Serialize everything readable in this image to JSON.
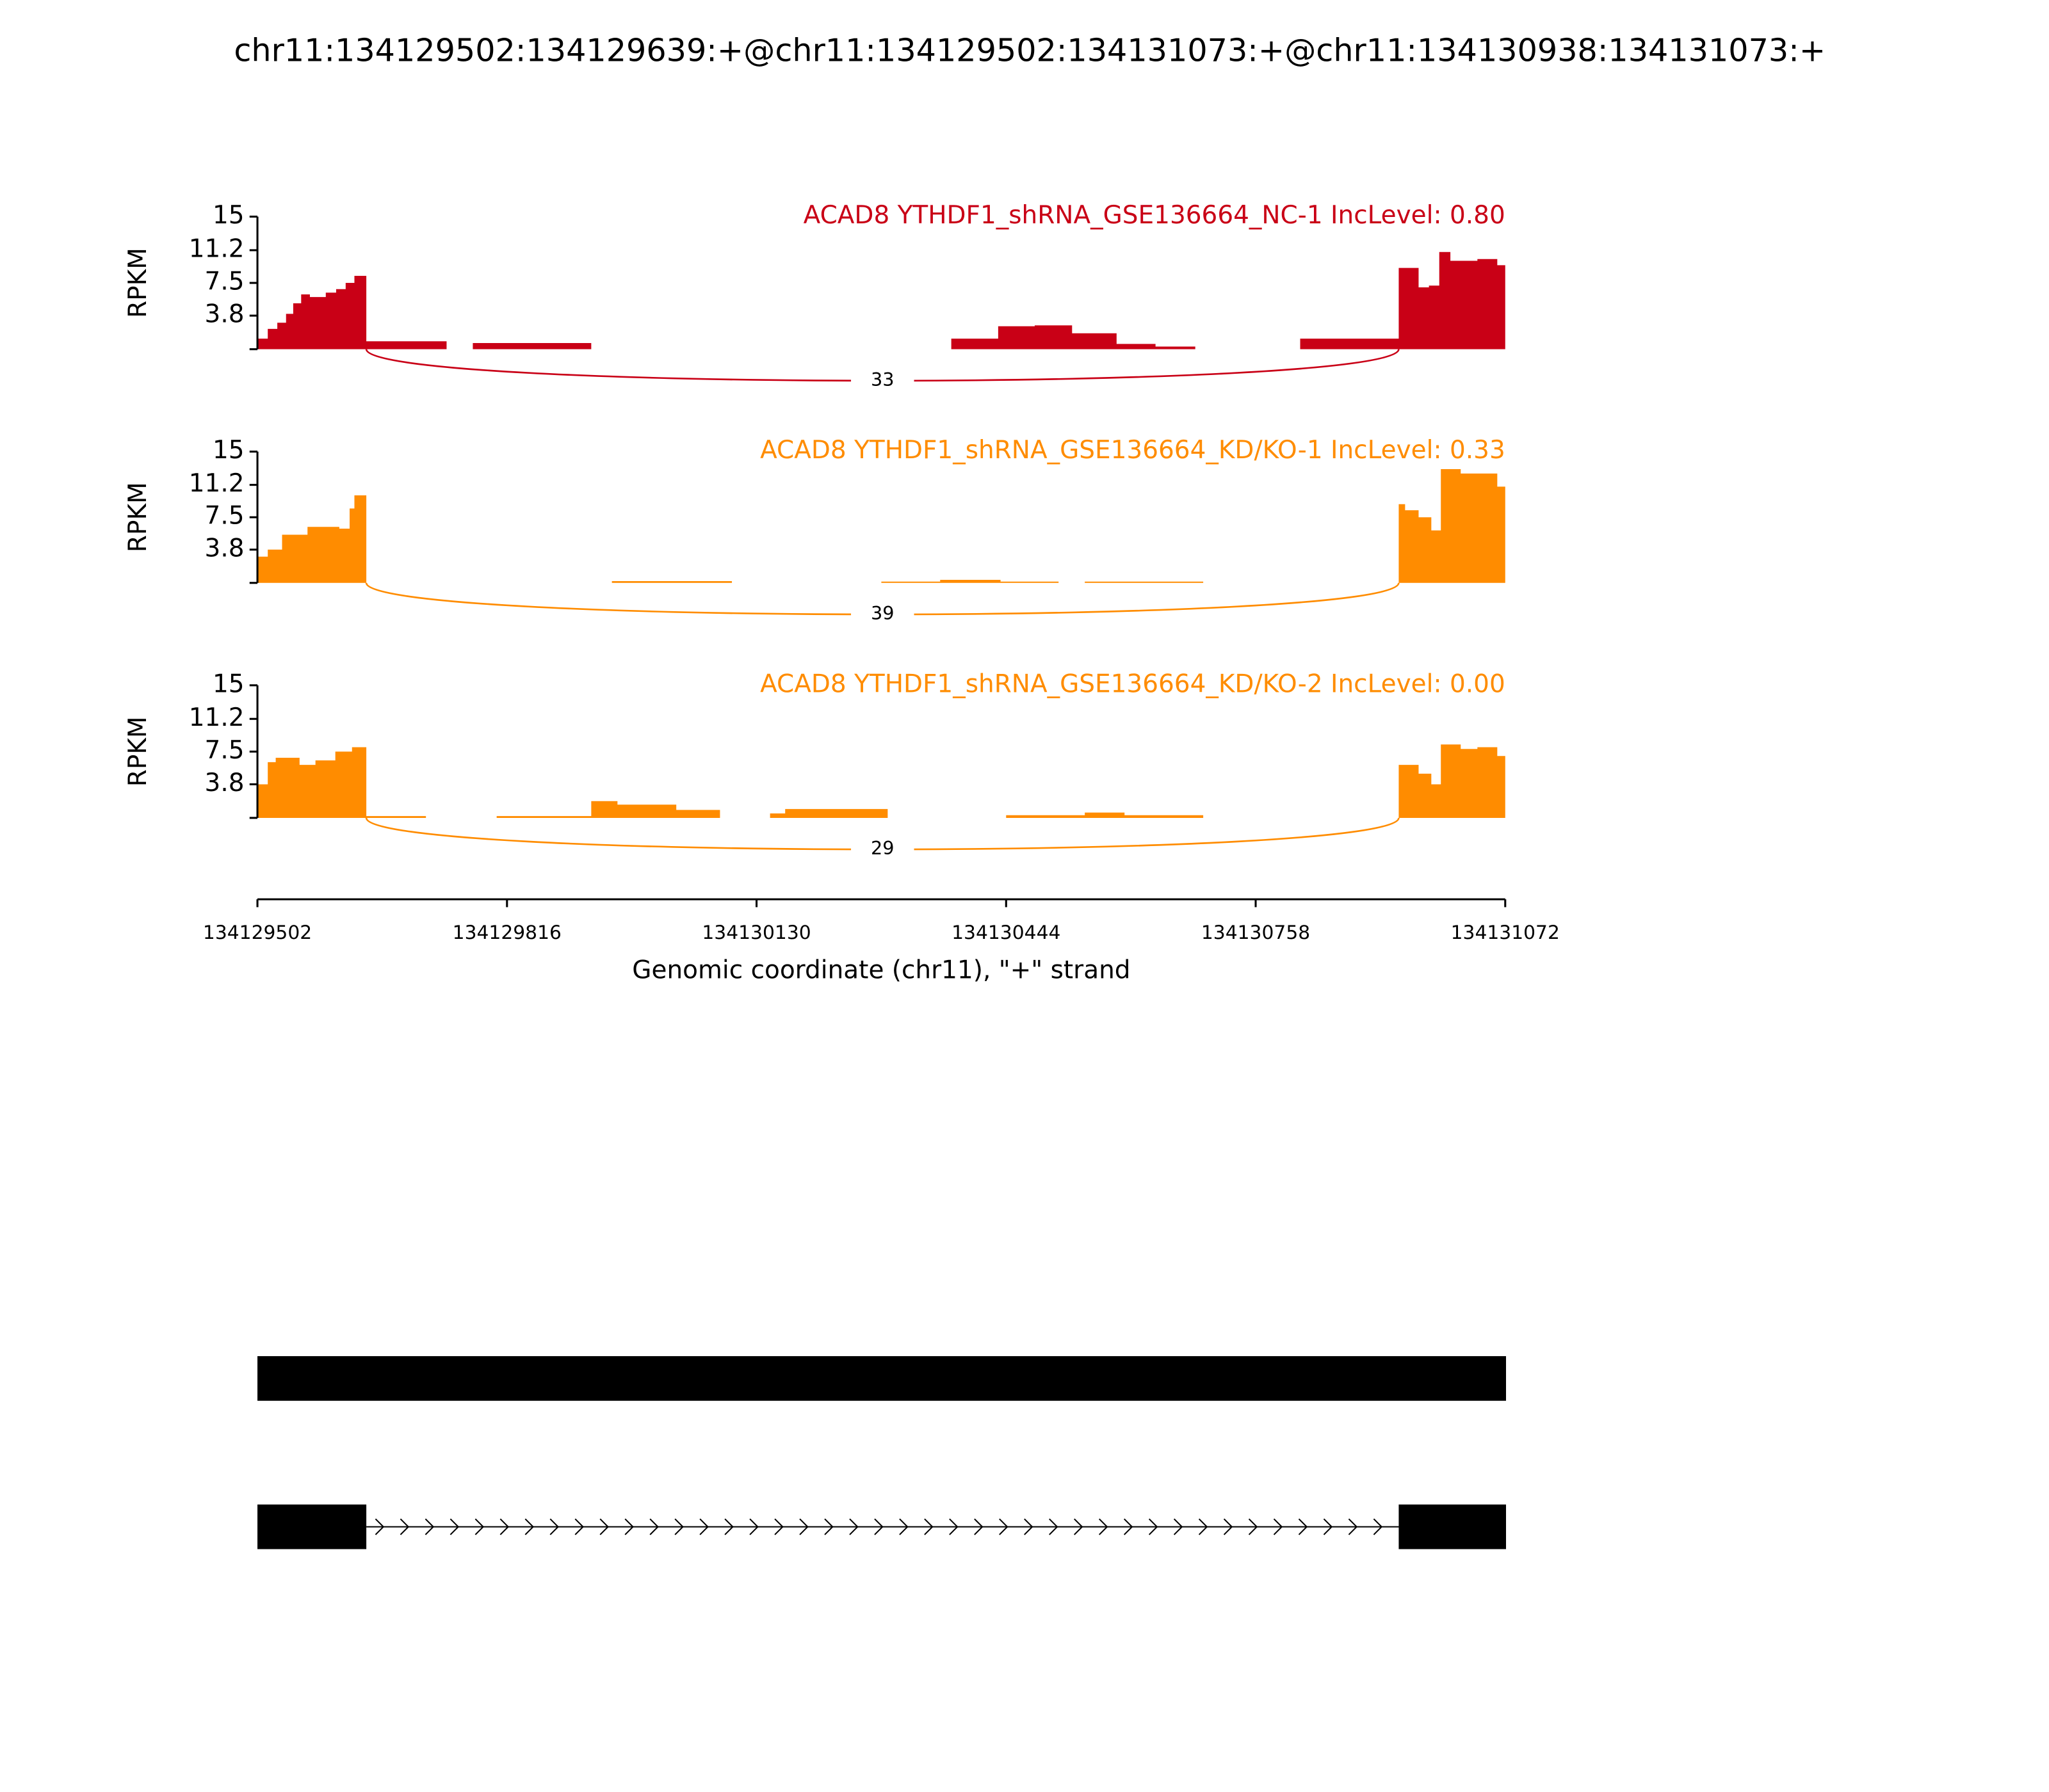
{
  "title": "chr11:134129502:134129639:+@chr11:134129502:134131073:+@chr11:134130938:134131073:+",
  "x_axis": {
    "label": "Genomic coordinate (chr11), \"+\" strand",
    "xlim": [
      134129502,
      134131072
    ],
    "xticks": [
      134129502,
      134129816,
      134130130,
      134130444,
      134130758,
      134131072
    ]
  },
  "chart_data": [
    {
      "type": "area",
      "title": "ACAD8 YTHDF1_shRNA_GSE136664_NC-1 IncLevel: 0.80",
      "ylabel": "RPKM",
      "color": "#c90016",
      "ylim": [
        0,
        15
      ],
      "yticks": [
        3.8,
        7.5,
        11.2,
        15
      ],
      "x": [
        134129502,
        134129515,
        134129527,
        134129538,
        134129547,
        134129557,
        134129568,
        134129588,
        134129601,
        134129613,
        134129624,
        134129639,
        134129740,
        134129773,
        134129922,
        134130375,
        134130434,
        134130480,
        134130527,
        134130583,
        134130632,
        134130682,
        134130814,
        134130938,
        134130963,
        134130976,
        134130989,
        134131003,
        134131037,
        134131062,
        134131072
      ],
      "values": [
        1.2,
        2.3,
        3.0,
        4.0,
        5.2,
        6.2,
        5.9,
        6.4,
        6.8,
        7.5,
        8.3,
        0.9,
        0,
        0.7,
        0,
        1.2,
        2.6,
        2.7,
        1.8,
        0.6,
        0.3,
        0,
        1.2,
        9.2,
        7.0,
        7.2,
        11.0,
        10.0,
        10.2,
        9.5,
        9.5
      ],
      "junction": {
        "start": 134129639,
        "end": 134130938,
        "count": 33
      }
    },
    {
      "type": "area",
      "title": "ACAD8 YTHDF1_shRNA_GSE136664_KD/KO-1 IncLevel: 0.33",
      "ylabel": "RPKM",
      "color": "#ff8c00",
      "ylim": [
        0,
        15
      ],
      "yticks": [
        3.8,
        7.5,
        11.2,
        15
      ],
      "x": [
        134129502,
        134129515,
        134129533,
        134129565,
        134129605,
        134129618,
        134129624,
        134129639,
        134129948,
        134130099,
        134130287,
        134130361,
        134130437,
        134130510,
        134130543,
        134130692,
        134130938,
        134130946,
        134130963,
        134130979,
        134130991,
        134131016,
        134131062,
        134131072
      ],
      "values": [
        3.0,
        3.8,
        5.5,
        6.4,
        6.2,
        8.5,
        10.0,
        0,
        0.2,
        0,
        0.15,
        0.35,
        0.15,
        0,
        0.15,
        0,
        9.0,
        8.3,
        7.5,
        6.0,
        13.0,
        12.5,
        11.0,
        11.0
      ],
      "junction": {
        "start": 134129639,
        "end": 134130938,
        "count": 39
      }
    },
    {
      "type": "area",
      "title": "ACAD8 YTHDF1_shRNA_GSE136664_KD/KO-2 IncLevel: 0.00",
      "ylabel": "RPKM",
      "color": "#ff8c00",
      "ylim": [
        0,
        15
      ],
      "yticks": [
        3.8,
        7.5,
        11.2,
        15
      ],
      "x": [
        134129502,
        134129515,
        134129525,
        134129555,
        134129575,
        134129600,
        134129621,
        134129639,
        134129714,
        134129803,
        134129922,
        134129955,
        134130029,
        134130084,
        134130147,
        134130166,
        134130295,
        134130444,
        134130543,
        134130593,
        134130692,
        134130938,
        134130963,
        134130979,
        134130991,
        134131016,
        134131037,
        134131062,
        134131072
      ],
      "values": [
        3.8,
        6.3,
        6.8,
        6.0,
        6.5,
        7.5,
        8.0,
        0.2,
        0,
        0.2,
        1.9,
        1.5,
        0.9,
        0,
        0.5,
        1.0,
        0,
        0.3,
        0.6,
        0.3,
        0,
        6.0,
        5.0,
        3.8,
        8.3,
        7.8,
        8.0,
        7.0,
        7.0
      ],
      "junction": {
        "start": 134129639,
        "end": 134130938,
        "count": 29
      }
    }
  ],
  "transcripts": [
    {
      "exons": [
        [
          134129502,
          134131073
        ]
      ]
    },
    {
      "exons": [
        [
          134129502,
          134129639
        ],
        [
          134130938,
          134131073
        ]
      ]
    }
  ]
}
